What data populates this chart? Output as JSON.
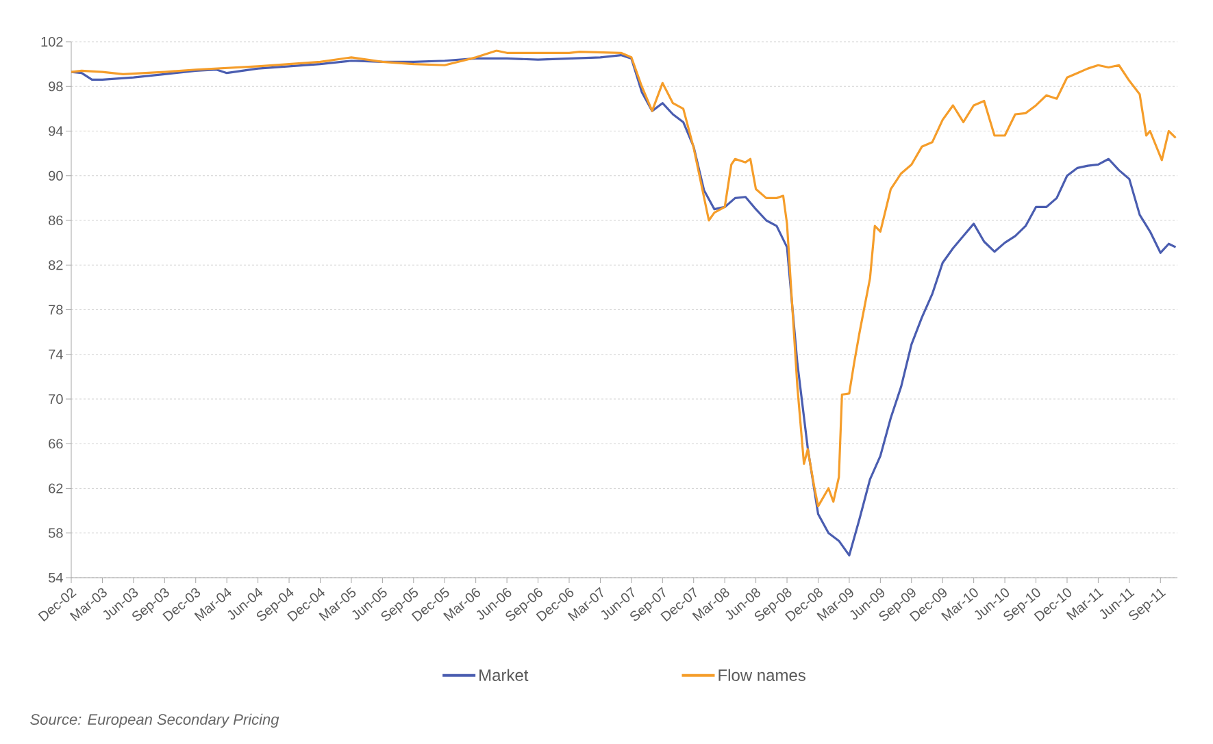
{
  "chart_data": {
    "type": "line",
    "xlim": [
      "2002-12",
      "2011-10-20"
    ],
    "ylim": [
      54,
      102
    ],
    "xticks": [
      {
        "value": "2002-12",
        "label": "Dec-02"
      },
      {
        "value": "2003-03",
        "label": "Mar-03"
      },
      {
        "value": "2003-06",
        "label": "Jun-03"
      },
      {
        "value": "2003-09",
        "label": "Sep-03"
      },
      {
        "value": "2003-12",
        "label": "Dec-03"
      },
      {
        "value": "2004-03",
        "label": "Mar-04"
      },
      {
        "value": "2004-06",
        "label": "Jun-04"
      },
      {
        "value": "2004-09",
        "label": "Sep-04"
      },
      {
        "value": "2004-12",
        "label": "Dec-04"
      },
      {
        "value": "2005-03",
        "label": "Mar-05"
      },
      {
        "value": "2005-06",
        "label": "Jun-05"
      },
      {
        "value": "2005-09",
        "label": "Sep-05"
      },
      {
        "value": "2005-12",
        "label": "Dec-05"
      },
      {
        "value": "2006-03",
        "label": "Mar-06"
      },
      {
        "value": "2006-06",
        "label": "Jun-06"
      },
      {
        "value": "2006-09",
        "label": "Sep-06"
      },
      {
        "value": "2006-12",
        "label": "Dec-06"
      },
      {
        "value": "2007-03",
        "label": "Mar-07"
      },
      {
        "value": "2007-06",
        "label": "Jun-07"
      },
      {
        "value": "2007-09",
        "label": "Sep-07"
      },
      {
        "value": "2007-12",
        "label": "Dec-07"
      },
      {
        "value": "2008-03",
        "label": "Mar-08"
      },
      {
        "value": "2008-06",
        "label": "Jun-08"
      },
      {
        "value": "2008-09",
        "label": "Sep-08"
      },
      {
        "value": "2008-12",
        "label": "Dec-08"
      },
      {
        "value": "2009-03",
        "label": "Mar-09"
      },
      {
        "value": "2009-06",
        "label": "Jun-09"
      },
      {
        "value": "2009-09",
        "label": "Sep-09"
      },
      {
        "value": "2009-12",
        "label": "Dec-09"
      },
      {
        "value": "2010-03",
        "label": "Mar-10"
      },
      {
        "value": "2010-06",
        "label": "Jun-10"
      },
      {
        "value": "2010-09",
        "label": "Sep-10"
      },
      {
        "value": "2010-12",
        "label": "Dec-10"
      },
      {
        "value": "2011-03",
        "label": "Mar-11"
      },
      {
        "value": "2011-06",
        "label": "Jun-11"
      },
      {
        "value": "2011-09",
        "label": "Sep-11"
      }
    ],
    "yticks": [
      54,
      58,
      62,
      66,
      70,
      74,
      78,
      82,
      86,
      90,
      94,
      98,
      102
    ],
    "grid": "y",
    "legend": "bottom",
    "annotations": [
      "Source: European Secondary Pricing"
    ],
    "series": [
      {
        "name": "Market",
        "color": "#4a5db0",
        "x": [
          "2002-12",
          "2003-01",
          "2003-02",
          "2003-03",
          "2003-06",
          "2003-09",
          "2003-12",
          "2004-02",
          "2004-03",
          "2004-06",
          "2004-09",
          "2004-12",
          "2005-03",
          "2005-06",
          "2005-09",
          "2005-12",
          "2006-03",
          "2006-06",
          "2006-09",
          "2006-12",
          "2007-03",
          "2007-05",
          "2007-06",
          "2007-07",
          "2007-08",
          "2007-09",
          "2007-10",
          "2007-11",
          "2007-12",
          "2008-01",
          "2008-02",
          "2008-03",
          "2008-04",
          "2008-05",
          "2008-06",
          "2008-07",
          "2008-08",
          "2008-09",
          "2008-10",
          "2008-11",
          "2008-12",
          "2009-01",
          "2009-02",
          "2009-03",
          "2009-04",
          "2009-05",
          "2009-06",
          "2009-07",
          "2009-08",
          "2009-09",
          "2009-10",
          "2009-11",
          "2009-12",
          "2010-01",
          "2010-02",
          "2010-03",
          "2010-04",
          "2010-05",
          "2010-06",
          "2010-07",
          "2010-08",
          "2010-09",
          "2010-10",
          "2010-11",
          "2010-12",
          "2011-01",
          "2011-02",
          "2011-03",
          "2011-04",
          "2011-05",
          "2011-06",
          "2011-07",
          "2011-08",
          "2011-09",
          "2011-09-25",
          "2011-10-15"
        ],
        "values": [
          99.3,
          99.2,
          98.6,
          98.6,
          98.8,
          99.1,
          99.4,
          99.5,
          99.2,
          99.6,
          99.8,
          100.0,
          100.3,
          100.2,
          100.2,
          100.3,
          100.5,
          100.5,
          100.4,
          100.5,
          100.6,
          100.8,
          100.5,
          97.5,
          95.8,
          96.5,
          95.5,
          94.8,
          92.6,
          88.7,
          87.0,
          87.2,
          88.0,
          88.1,
          87.0,
          86.0,
          85.5,
          83.6,
          73.2,
          65.6,
          59.7,
          58.0,
          57.3,
          56.0,
          59.3,
          62.8,
          64.9,
          68.3,
          71.1,
          74.9,
          77.3,
          79.4,
          82.2,
          83.5,
          84.6,
          85.7,
          84.1,
          83.2,
          84.0,
          84.6,
          85.5,
          87.2,
          87.2,
          88.0,
          90.0,
          90.7,
          90.9,
          91.0,
          91.5,
          90.5,
          89.7,
          86.5,
          85.0,
          83.1,
          83.9,
          83.6
        ]
      },
      {
        "name": "Flow names",
        "color": "#f59d2a",
        "x": [
          "2002-12",
          "2003-01",
          "2003-03",
          "2003-05",
          "2003-09",
          "2003-12",
          "2004-06",
          "2004-12",
          "2005-03",
          "2005-06",
          "2005-09",
          "2005-12",
          "2006-03",
          "2006-05",
          "2006-06",
          "2006-12",
          "2007-01",
          "2007-05",
          "2007-06",
          "2007-07",
          "2007-08",
          "2007-09",
          "2007-10",
          "2007-11",
          "2007-12",
          "2008-01-15",
          "2008-02",
          "2008-03",
          "2008-03-20",
          "2008-04",
          "2008-05",
          "2008-05-15",
          "2008-06",
          "2008-07",
          "2008-08",
          "2008-08-20",
          "2008-09",
          "2008-10",
          "2008-10-20",
          "2008-11",
          "2008-11-20",
          "2008-12",
          "2009-01",
          "2009-01-15",
          "2009-02",
          "2009-02-10",
          "2009-03",
          "2009-03-15",
          "2009-04",
          "2009-05",
          "2009-05-15",
          "2009-06",
          "2009-07",
          "2009-08",
          "2009-09",
          "2009-10",
          "2009-11",
          "2009-12",
          "2010-01",
          "2010-02",
          "2010-03",
          "2010-04",
          "2010-05",
          "2010-06",
          "2010-07",
          "2010-08",
          "2010-09",
          "2010-10",
          "2010-11",
          "2010-12",
          "2011-01",
          "2011-02",
          "2011-03",
          "2011-04",
          "2011-05",
          "2011-06",
          "2011-07",
          "2011-07-20",
          "2011-08",
          "2011-09-05",
          "2011-09-25",
          "2011-10-15"
        ],
        "values": [
          99.3,
          99.4,
          99.3,
          99.1,
          99.3,
          99.5,
          99.8,
          100.2,
          100.6,
          100.2,
          100.0,
          99.9,
          100.6,
          101.2,
          101.0,
          101.0,
          101.1,
          101.0,
          100.6,
          98.0,
          95.8,
          98.3,
          96.5,
          96.0,
          92.5,
          86.0,
          86.7,
          87.2,
          91.0,
          91.5,
          91.2,
          91.5,
          88.8,
          88.0,
          88.0,
          88.2,
          85.7,
          71.1,
          64.2,
          65.5,
          62.1,
          60.4,
          62.0,
          60.8,
          63.0,
          70.4,
          70.5,
          73.2,
          76.0,
          80.8,
          85.5,
          85.0,
          88.8,
          90.2,
          91.0,
          92.6,
          93.0,
          95.0,
          96.3,
          94.8,
          96.3,
          96.7,
          93.6,
          93.6,
          95.5,
          95.6,
          96.3,
          97.2,
          96.9,
          98.8,
          99.2,
          99.6,
          99.9,
          99.7,
          99.9,
          98.5,
          97.3,
          93.6,
          94.0,
          91.4,
          94.0,
          93.4
        ]
      }
    ]
  }
}
